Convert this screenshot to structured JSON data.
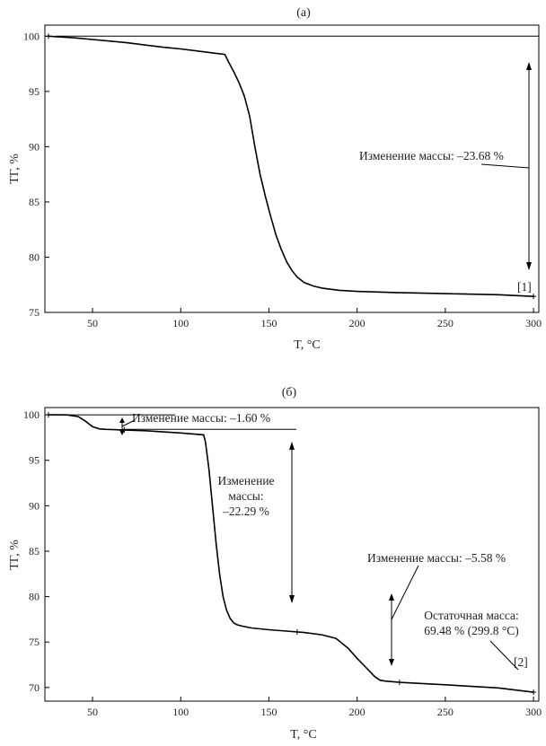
{
  "chart_data": [
    {
      "type": "line",
      "title": "(а)",
      "xlabel": "T, °C",
      "ylabel": "ТГ, %",
      "xlim": [
        23,
        303
      ],
      "ylim": [
        75,
        101
      ],
      "xticks": [
        "50",
        "100",
        "150",
        "200",
        "250",
        "300"
      ],
      "yticks": [
        "75",
        "80",
        "85",
        "90",
        "95",
        "100"
      ],
      "series": [
        {
          "x": [
            25,
            30,
            40,
            50,
            60,
            70,
            80,
            90,
            100,
            110,
            120,
            125,
            127,
            130,
            133,
            136,
            139,
            142,
            145,
            148,
            151,
            154,
            157,
            160,
            163,
            166,
            170,
            175,
            180,
            190,
            200,
            220,
            250,
            280,
            300
          ],
          "y": [
            100.0,
            99.95,
            99.85,
            99.7,
            99.55,
            99.4,
            99.2,
            99.0,
            98.85,
            98.65,
            98.45,
            98.35,
            97.7,
            96.8,
            95.8,
            94.6,
            92.8,
            90.0,
            87.5,
            85.5,
            83.7,
            82.0,
            80.7,
            79.6,
            78.8,
            78.2,
            77.7,
            77.4,
            77.2,
            77.0,
            76.9,
            76.8,
            76.7,
            76.6,
            76.45
          ]
        }
      ],
      "reference_line": 100,
      "annotations": [
        {
          "text": "Изменение массы: –23.68 %"
        },
        {
          "text": "[1]"
        }
      ]
    },
    {
      "type": "line",
      "title": "(б)",
      "xlabel": "T, °C",
      "ylabel": "ТГ, %",
      "xlim": [
        23,
        303
      ],
      "ylim": [
        68.5,
        100.8
      ],
      "xticks": [
        "50",
        "100",
        "150",
        "200",
        "250",
        "300"
      ],
      "yticks": [
        "70",
        "75",
        "80",
        "85",
        "90",
        "95",
        "100"
      ],
      "series": [
        {
          "x": [
            25,
            35,
            42,
            46,
            50,
            54,
            58,
            65,
            80,
            100,
            113,
            114,
            116,
            118,
            120,
            122,
            124,
            126,
            128,
            130,
            132,
            135,
            140,
            150,
            160,
            170,
            180,
            188,
            195,
            200,
            205,
            210,
            213,
            216,
            225,
            250,
            280,
            300
          ],
          "y": [
            100.0,
            100.0,
            99.8,
            99.3,
            98.7,
            98.45,
            98.4,
            98.35,
            98.25,
            98.0,
            97.8,
            97.0,
            94.0,
            90.0,
            86.0,
            82.5,
            80.0,
            78.5,
            77.6,
            77.1,
            76.9,
            76.75,
            76.55,
            76.35,
            76.2,
            76.05,
            75.8,
            75.4,
            74.3,
            73.2,
            72.2,
            71.2,
            70.8,
            70.7,
            70.55,
            70.3,
            69.95,
            69.48
          ]
        }
      ],
      "reference_lines": [
        100,
        98.4
      ],
      "annotations": [
        {
          "text": "Изменение массы: –1.60 %"
        },
        {
          "text": "Изменение"
        },
        {
          "text": "массы:"
        },
        {
          "text": "–22.29 %"
        },
        {
          "text": "Изменение массы: –5.58 %"
        },
        {
          "text": "Остаточная масса:"
        },
        {
          "text": "69.48 % (299.8 °C)"
        },
        {
          "text": "[2]"
        }
      ]
    }
  ]
}
